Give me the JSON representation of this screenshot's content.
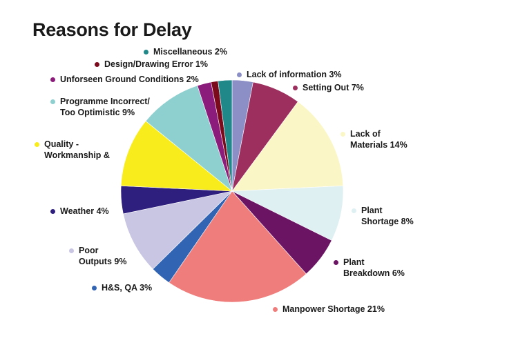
{
  "chart_data": {
    "type": "pie",
    "title": "Reasons for Delay",
    "legend_placement": "around",
    "slices": [
      {
        "label": "Lack of information 3%",
        "value": 3,
        "color": "#8c8fc6"
      },
      {
        "label": "Setting Out 7%",
        "value": 7,
        "color": "#9c2f5e"
      },
      {
        "label": "Lack of\nMaterials 14%",
        "value": 14,
        "color": "#fbf6c6"
      },
      {
        "label": "Plant\nShortage 8%",
        "value": 8,
        "color": "#dff0f3"
      },
      {
        "label": "Plant\nBreakdown 6%",
        "value": 6,
        "color": "#6b1464"
      },
      {
        "label": "Manpower Shortage 21%",
        "value": 21,
        "color": "#ef7d7b"
      },
      {
        "label": "H&S, QA 3%",
        "value": 3,
        "color": "#3264b4"
      },
      {
        "label": "Poor\nOutputs 9%",
        "value": 9,
        "color": "#c9c6e4"
      },
      {
        "label": "Weather 4%",
        "value": 4,
        "color": "#2e1f7e"
      },
      {
        "label": "Quality -\nWorkmanship &",
        "value": 10,
        "color": "#f8ec1c"
      },
      {
        "label": "Programme Incorrect/\nToo Optimistic 9%",
        "value": 9,
        "color": "#8ecfcf"
      },
      {
        "label": "Unforseen Ground Conditions 2%",
        "value": 2,
        "color": "#8c1c7c"
      },
      {
        "label": "Design/Drawing Error 1%",
        "value": 1,
        "color": "#7a0a1c"
      },
      {
        "label": "Miscellaneous 2%",
        "value": 2,
        "color": "#21888a"
      }
    ]
  }
}
